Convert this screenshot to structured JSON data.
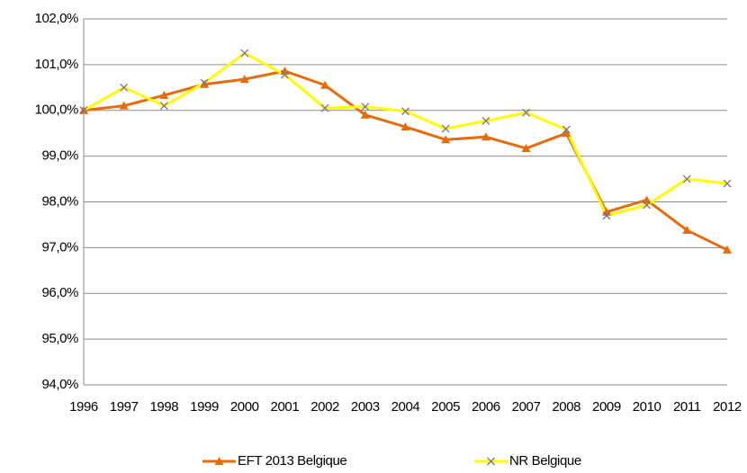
{
  "chart_data": {
    "type": "line",
    "categories": [
      "1996",
      "1997",
      "1998",
      "1999",
      "2000",
      "2001",
      "2002",
      "2003",
      "2004",
      "2005",
      "2006",
      "2007",
      "2008",
      "2009",
      "2010",
      "2011",
      "2012"
    ],
    "series": [
      {
        "name": "EFT 2013 Belgique",
        "color": "#e46c0a",
        "marker": "triangle",
        "values": [
          100.0,
          100.1,
          100.33,
          100.57,
          100.68,
          100.86,
          100.55,
          99.9,
          99.64,
          99.36,
          99.42,
          99.17,
          99.5,
          97.78,
          98.04,
          97.38,
          96.95
        ]
      },
      {
        "name": "NR Belgique",
        "color": "#ffff00",
        "marker": "x",
        "marker_color": "#7a7090",
        "values": [
          100.0,
          100.5,
          100.1,
          100.6,
          101.25,
          100.78,
          100.05,
          100.08,
          99.98,
          99.6,
          99.77,
          99.95,
          99.58,
          97.7,
          97.93,
          98.5,
          98.4
        ]
      }
    ],
    "ylim": [
      94,
      102
    ],
    "yticks": [
      {
        "value": 94,
        "label": "94,0%"
      },
      {
        "value": 95,
        "label": "95,0%"
      },
      {
        "value": 96,
        "label": "96,0%"
      },
      {
        "value": 97,
        "label": "97,0%"
      },
      {
        "value": 98,
        "label": "98,0%"
      },
      {
        "value": 99,
        "label": "99,0%"
      },
      {
        "value": 100,
        "label": "100,0%"
      },
      {
        "value": 101,
        "label": "101,0%"
      },
      {
        "value": 102,
        "label": "102,0%"
      }
    ],
    "grid": true,
    "legend": "bottom"
  }
}
